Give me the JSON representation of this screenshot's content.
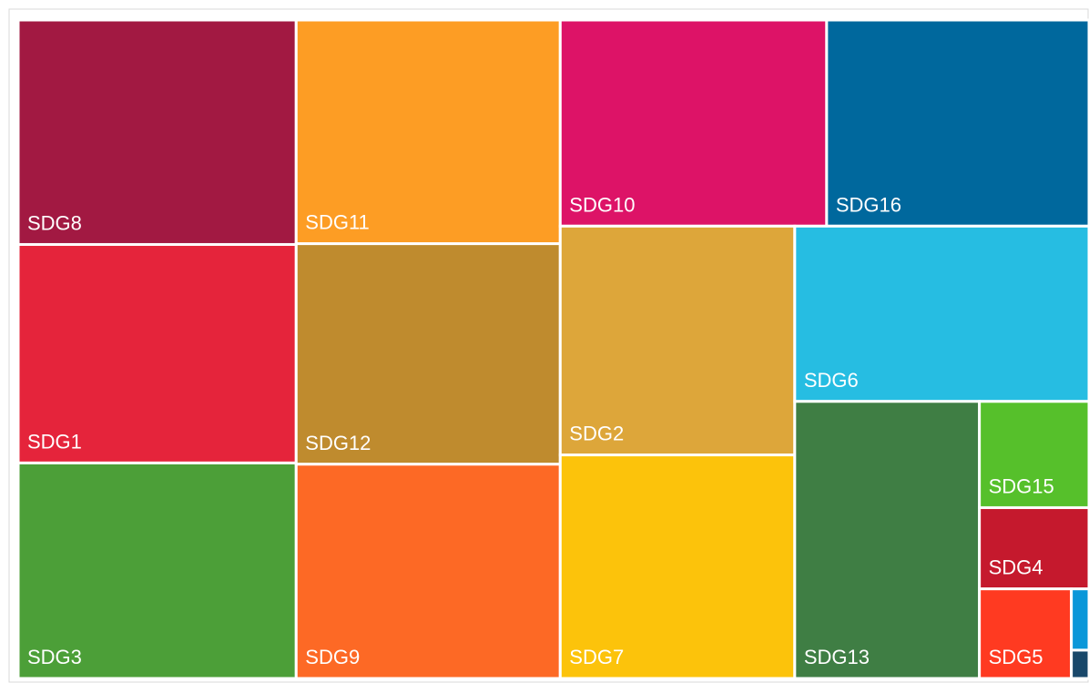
{
  "chart_data": {
    "type": "treemap",
    "categories": [
      "SDG8",
      "SDG1",
      "SDG3",
      "SDG11",
      "SDG12",
      "SDG9",
      "SDG10",
      "SDG16",
      "SDG2",
      "SDG7",
      "SDG6",
      "SDG13",
      "SDG15",
      "SDG4",
      "SDG5",
      null,
      null
    ],
    "values": [
      75,
      73,
      72,
      71,
      70,
      68,
      66,
      65,
      64.5,
      63,
      62,
      61.5,
      14,
      10.7,
      9.9,
      1.3,
      0.6
    ],
    "colors": [
      "#A21942",
      "#E5243B",
      "#4C9F38",
      "#FD9D24",
      "#BF8B2E",
      "#FD6925",
      "#DD1367",
      "#00689D",
      "#DDA63A",
      "#FCC30B",
      "#26BDE2",
      "#3F7E44",
      "#56C02B",
      "#C5192D",
      "#FF3A21",
      "#0A97D9",
      "#19486A"
    ]
  }
}
